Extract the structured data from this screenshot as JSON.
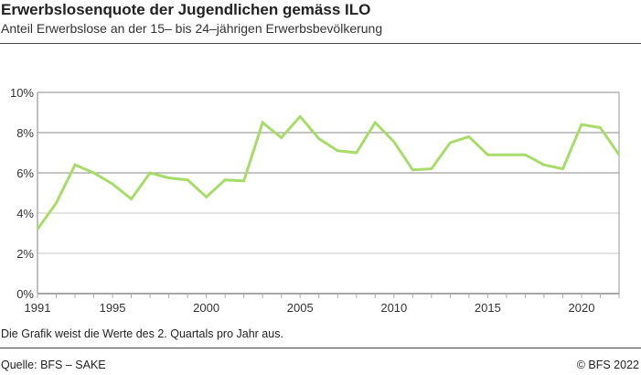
{
  "header": {
    "title": "Erwerbslosenquote der Jugendlichen gemäss ILO",
    "subtitle": "Anteil Erwerbslose an der 15– bis 24–jährigen Erwerbsbevölkerung"
  },
  "footer": {
    "note": "Die Grafik weist die Werte des 2. Quartals pro Jahr aus.",
    "source": "Quelle: BFS – SAKE",
    "copyright": "© BFS 2022"
  },
  "chart_data": {
    "type": "line",
    "title": "",
    "xlabel": "",
    "ylabel": "",
    "x": [
      1991,
      1992,
      1993,
      1994,
      1995,
      1996,
      1997,
      1998,
      1999,
      2000,
      2001,
      2002,
      2003,
      2004,
      2005,
      2006,
      2007,
      2008,
      2009,
      2010,
      2011,
      2012,
      2013,
      2014,
      2015,
      2016,
      2017,
      2018,
      2019,
      2020,
      2021,
      2022
    ],
    "series": [
      {
        "values": [
          3.2,
          4.5,
          6.4,
          6.0,
          5.45,
          4.7,
          6.0,
          5.75,
          5.65,
          4.8,
          5.65,
          5.6,
          8.5,
          7.75,
          8.8,
          7.7,
          7.1,
          7.0,
          8.5,
          7.55,
          6.15,
          6.2,
          7.5,
          7.8,
          6.9,
          6.9,
          6.9,
          6.4,
          6.2,
          8.4,
          8.25,
          6.9
        ],
        "color": "#a8dc6a"
      }
    ],
    "xlim": [
      1991,
      2022
    ],
    "ylim": [
      0,
      10
    ],
    "xticks": [
      "1991",
      "1995",
      "2000",
      "2005",
      "2010",
      "2015",
      "2020"
    ],
    "xtick_values": [
      1991,
      1995,
      2000,
      2005,
      2010,
      2015,
      2020
    ],
    "yticks": [
      "0%",
      "2%",
      "4%",
      "6%",
      "8%",
      "10%"
    ],
    "ytick_values": [
      0,
      2,
      4,
      6,
      8,
      10
    ],
    "grid": true,
    "legend": "none"
  }
}
